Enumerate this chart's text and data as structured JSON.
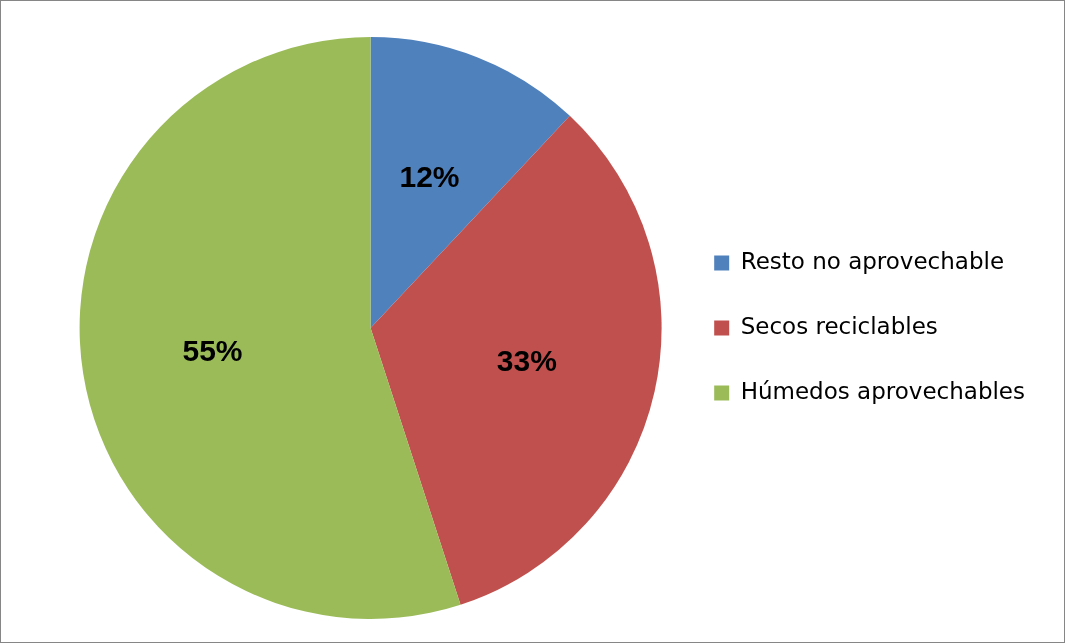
{
  "chart_data": {
    "type": "pie",
    "categories": [
      "Resto no aprovechable",
      "Secos reciclables",
      "Húmedos aprovechables"
    ],
    "values": [
      12,
      33,
      55
    ],
    "colors": [
      "#4f81bd",
      "#c0504d",
      "#9bbb59"
    ],
    "value_labels": [
      "12%",
      "33%",
      "55%"
    ],
    "legend": "right"
  }
}
